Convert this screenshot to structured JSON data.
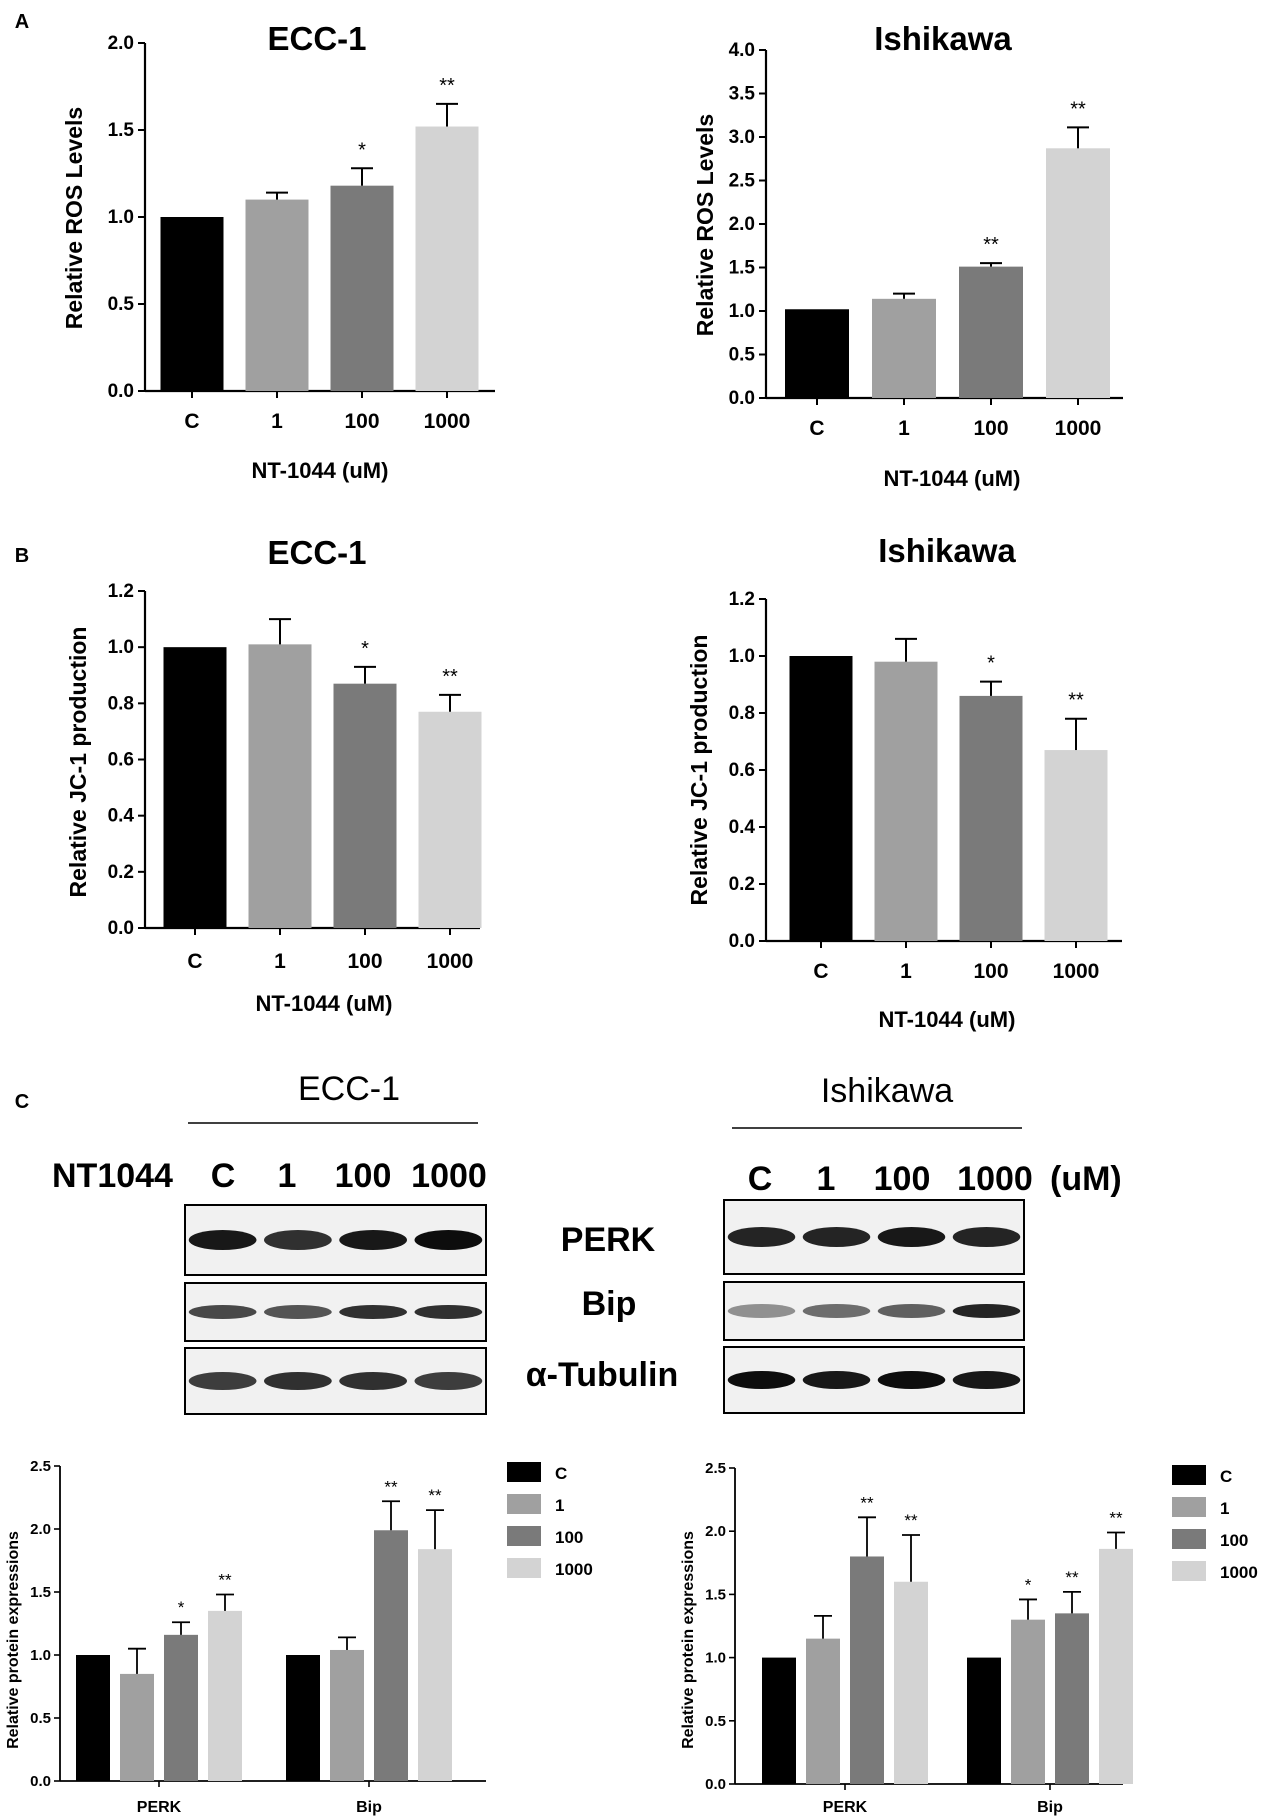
{
  "panel_labels": {
    "a": "A",
    "b": "B",
    "c": "C"
  },
  "colors": {
    "C": "#000000",
    "1": "#a0a0a0",
    "100": "#7a7a7a",
    "1000": "#d3d3d3"
  },
  "chart_data": [
    {
      "id": "ros-ecc1",
      "type": "bar",
      "title": "ECC-1",
      "xlabel": "NT-1044 (uM)",
      "ylabel": "Relative  ROS  Levels",
      "categories": [
        "C",
        "1",
        "100",
        "1000"
      ],
      "values": [
        1.0,
        1.1,
        1.18,
        1.52
      ],
      "errors": [
        0.0,
        0.04,
        0.1,
        0.13
      ],
      "annotations": [
        "",
        "",
        "*",
        "**"
      ],
      "ylim": [
        0,
        2.0
      ],
      "yticks": [
        "0.0",
        "0.5",
        "1.0",
        "1.5",
        "2.0"
      ],
      "grid": false
    },
    {
      "id": "ros-ishikawa",
      "type": "bar",
      "title": "Ishikawa",
      "xlabel": "NT-1044 (uM)",
      "ylabel": "Relative  ROS  Levels",
      "categories": [
        "C",
        "1",
        "100",
        "1000"
      ],
      "values": [
        1.02,
        1.14,
        1.51,
        2.87
      ],
      "errors": [
        0.0,
        0.06,
        0.04,
        0.24
      ],
      "annotations": [
        "",
        "",
        "**",
        "**"
      ],
      "ylim": [
        0,
        4.0
      ],
      "yticks": [
        "0.0",
        "0.5",
        "1.0",
        "1.5",
        "2.0",
        "2.5",
        "3.0",
        "3.5",
        "4.0"
      ],
      "grid": false
    },
    {
      "id": "jc1-ecc1",
      "type": "bar",
      "title": "ECC-1",
      "xlabel": "NT-1044 (uM)",
      "ylabel": "Relative JC-1 production",
      "categories": [
        "C",
        "1",
        "100",
        "1000"
      ],
      "values": [
        1.0,
        1.01,
        0.87,
        0.77
      ],
      "errors": [
        0.0,
        0.09,
        0.06,
        0.06
      ],
      "annotations": [
        "",
        "",
        "*",
        "**"
      ],
      "ylim": [
        0,
        1.2
      ],
      "yticks": [
        "0.0",
        "0.2",
        "0.4",
        "0.6",
        "0.8",
        "1.0",
        "1.2"
      ],
      "grid": false
    },
    {
      "id": "jc1-ishikawa",
      "type": "bar",
      "title": "Ishikawa",
      "xlabel": "NT-1044 (uM)",
      "ylabel": "Relative JC-1 production",
      "categories": [
        "C",
        "1",
        "100",
        "1000"
      ],
      "values": [
        1.0,
        0.98,
        0.86,
        0.67
      ],
      "errors": [
        0.0,
        0.08,
        0.05,
        0.11
      ],
      "annotations": [
        "",
        "",
        "*",
        "**"
      ],
      "ylim": [
        0,
        1.2
      ],
      "yticks": [
        "0.0",
        "0.2",
        "0.4",
        "0.6",
        "0.8",
        "1.0",
        "1.2"
      ],
      "grid": false
    },
    {
      "id": "protein-ecc1",
      "type": "bar",
      "title": "",
      "xlabel": "",
      "ylabel": "Relative protein expressions",
      "categories": [
        "PERK",
        "Bip"
      ],
      "series": [
        {
          "name": "C",
          "values": [
            1.0,
            1.0
          ],
          "errors": [
            0.0,
            0.0
          ],
          "annotations": [
            "",
            ""
          ]
        },
        {
          "name": "1",
          "values": [
            0.85,
            1.04
          ],
          "errors": [
            0.2,
            0.1
          ],
          "annotations": [
            "",
            ""
          ]
        },
        {
          "name": "100",
          "values": [
            1.16,
            1.99
          ],
          "errors": [
            0.1,
            0.23
          ],
          "annotations": [
            "*",
            "**"
          ]
        },
        {
          "name": "1000",
          "values": [
            1.35,
            1.84
          ],
          "errors": [
            0.13,
            0.31
          ],
          "annotations": [
            "**",
            "**"
          ]
        }
      ],
      "legend": "top-right",
      "ylim": [
        0,
        2.5
      ],
      "yticks": [
        "0.0",
        "0.5",
        "1.0",
        "1.5",
        "2.0",
        "2.5"
      ],
      "grid": false
    },
    {
      "id": "protein-ishikawa",
      "type": "bar",
      "title": "",
      "xlabel": "",
      "ylabel": "Relative protein expressions",
      "categories": [
        "PERK",
        "Bip"
      ],
      "series": [
        {
          "name": "C",
          "values": [
            1.0,
            1.0
          ],
          "errors": [
            0.0,
            0.0
          ],
          "annotations": [
            "",
            ""
          ]
        },
        {
          "name": "1",
          "values": [
            1.15,
            1.3
          ],
          "errors": [
            0.18,
            0.16
          ],
          "annotations": [
            "",
            "*"
          ]
        },
        {
          "name": "100",
          "values": [
            1.8,
            1.35
          ],
          "errors": [
            0.31,
            0.17
          ],
          "annotations": [
            "**",
            "**"
          ]
        },
        {
          "name": "1000",
          "values": [
            1.6,
            1.86
          ],
          "errors": [
            0.37,
            0.13
          ],
          "annotations": [
            "**",
            "**"
          ]
        }
      ],
      "legend": "top-right",
      "ylim": [
        0,
        2.5
      ],
      "yticks": [
        "0.0",
        "0.5",
        "1.0",
        "1.5",
        "2.0",
        "2.5"
      ],
      "grid": false
    }
  ],
  "western_blot": {
    "ecc1_title": "ECC-1",
    "ishikawa_title": "Ishikawa",
    "row_label": "NT1044",
    "lanes": [
      "C",
      "1",
      "100",
      "1000"
    ],
    "unit": "(uM)",
    "proteins": [
      "PERK",
      "Bip",
      "α-Tubulin"
    ]
  }
}
